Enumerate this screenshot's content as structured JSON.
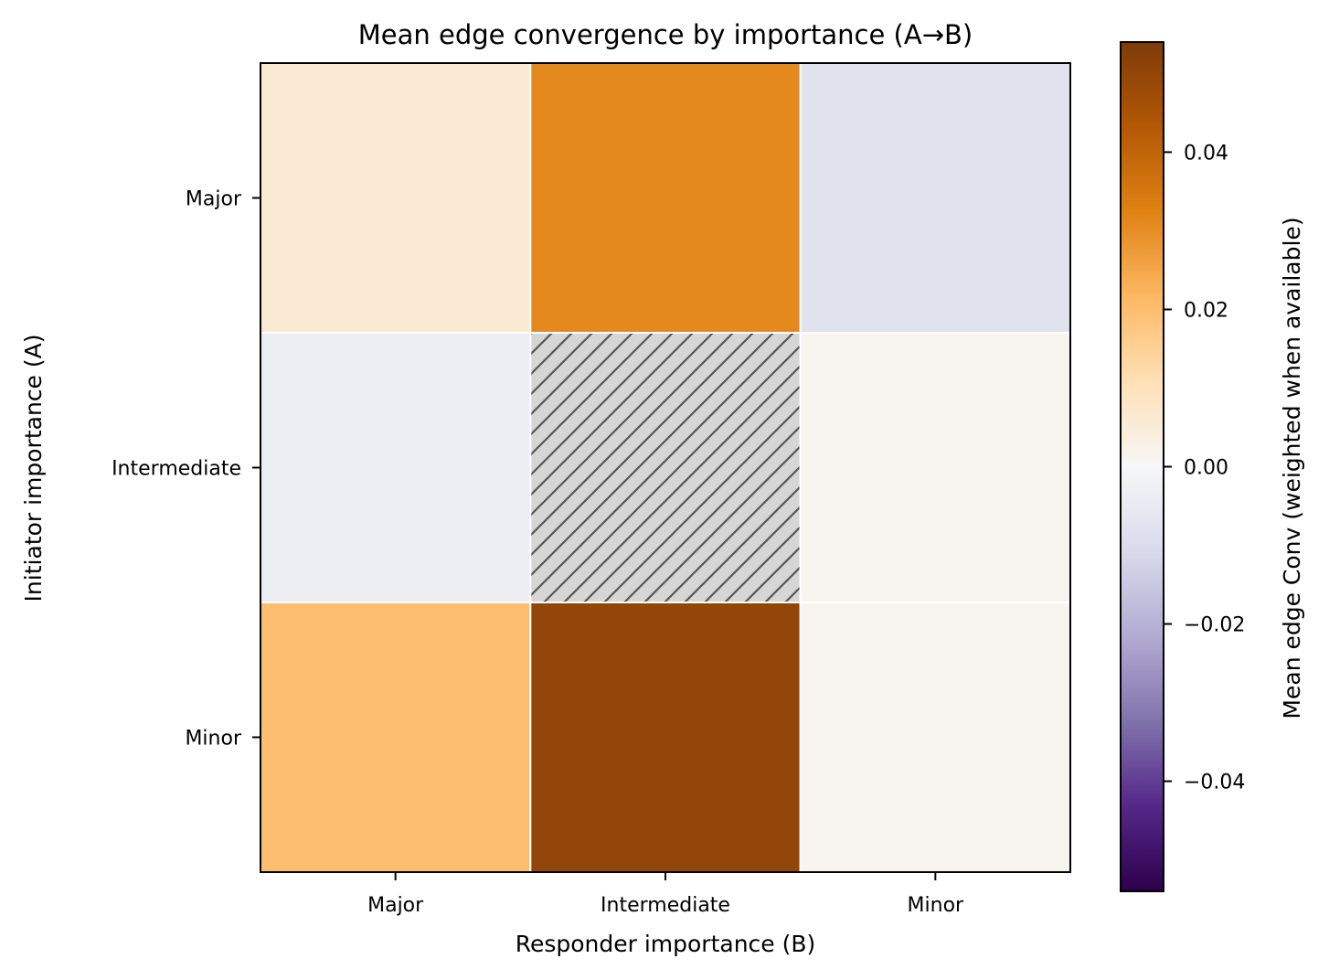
{
  "chart_data": {
    "type": "heatmap",
    "title": "Mean edge convergence by importance (A→B)",
    "xlabel": "Responder importance (B)",
    "ylabel": "Initiator importance (A)",
    "x_categories": [
      "Major",
      "Intermediate",
      "Minor"
    ],
    "y_categories": [
      "Major",
      "Intermediate",
      "Minor"
    ],
    "values": [
      [
        0.006,
        0.031,
        -0.008
      ],
      [
        -0.004,
        null,
        0.001
      ],
      [
        0.02,
        0.05,
        0.001
      ]
    ],
    "missing_pattern": "hatched",
    "colorbar": {
      "label": "Mean edge Conv (weighted when available)",
      "range": [
        -0.054,
        0.054
      ],
      "ticks": [
        0.04,
        0.02,
        0.0,
        -0.02,
        -0.04
      ],
      "tick_labels": [
        "0.04",
        "0.02",
        "0.00",
        "−0.02",
        "−0.04"
      ],
      "colormap": "PuOr_r"
    },
    "grid": false
  }
}
